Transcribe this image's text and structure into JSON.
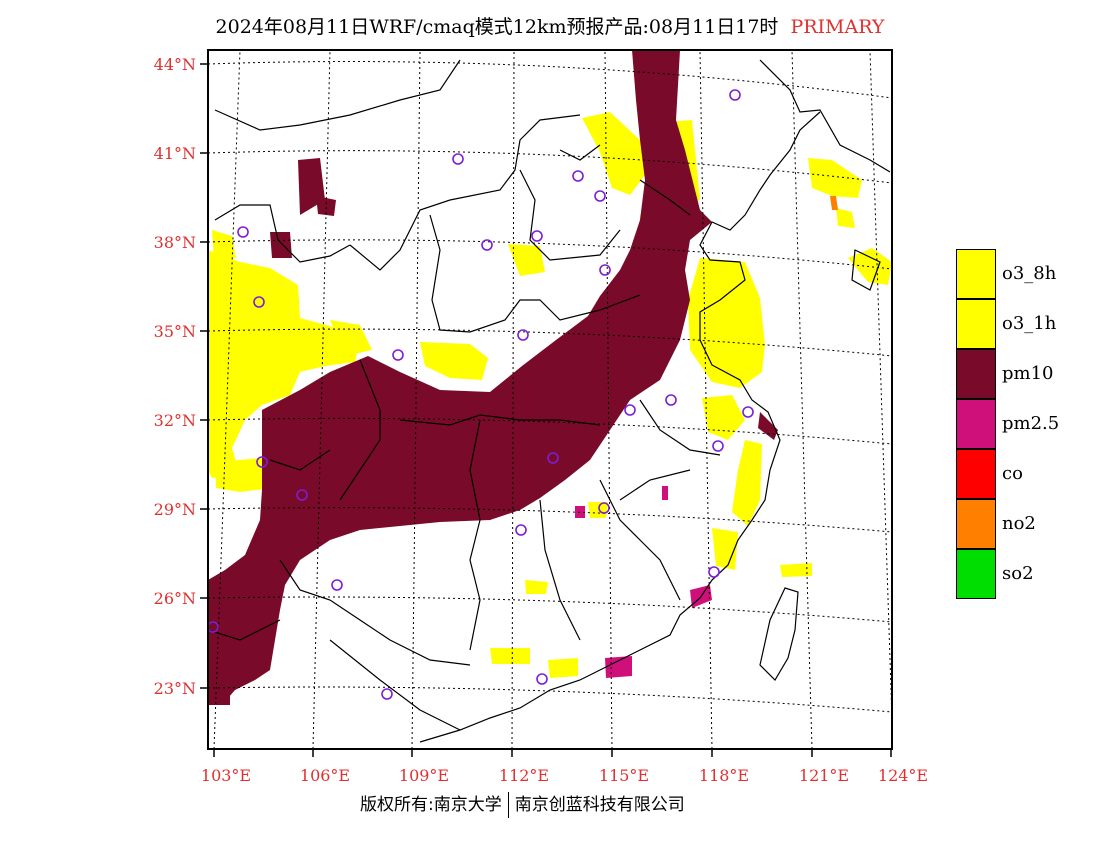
{
  "title": {
    "main": "2024年08月11日WRF/cmaq模式12km预报产品:08月11日17时",
    "tag": "PRIMARY"
  },
  "axes": {
    "lat_labels": [
      "44°N",
      "41°N",
      "38°N",
      "35°N",
      "32°N",
      "29°N",
      "26°N",
      "23°N"
    ],
    "lat_values": [
      44,
      41,
      38,
      35,
      32,
      29,
      26,
      23
    ],
    "lon_labels": [
      "103°E",
      "106°E",
      "109°E",
      "112°E",
      "115°E",
      "118°E",
      "121°E",
      "124°E"
    ],
    "lon_values": [
      103,
      106,
      109,
      112,
      115,
      118,
      121,
      124
    ],
    "lat_range": [
      21,
      44.5
    ],
    "lon_range": [
      102.7,
      124
    ]
  },
  "legend": {
    "items": [
      {
        "label": "o3_8h",
        "color": "#ffff00"
      },
      {
        "label": "o3_1h",
        "color": "#ffff00"
      },
      {
        "label": "pm10",
        "color": "#7a0a2a"
      },
      {
        "label": "pm2.5",
        "color": "#d0107a"
      },
      {
        "label": "co",
        "color": "#ff0000"
      },
      {
        "label": "no2",
        "color": "#ff8000"
      },
      {
        "label": "so2",
        "color": "#00dd00"
      }
    ]
  },
  "colors": {
    "pm10": "#7a0a2a",
    "o3": "#ffff00",
    "pm25": "#d0107a",
    "no2": "#ff8000",
    "station": "#7b1fd6",
    "label": "#e03030",
    "boundary": "#000000"
  },
  "copyright": {
    "left": "版权所有:南京大学",
    "right": "南京创蓝科技有限公司"
  }
}
